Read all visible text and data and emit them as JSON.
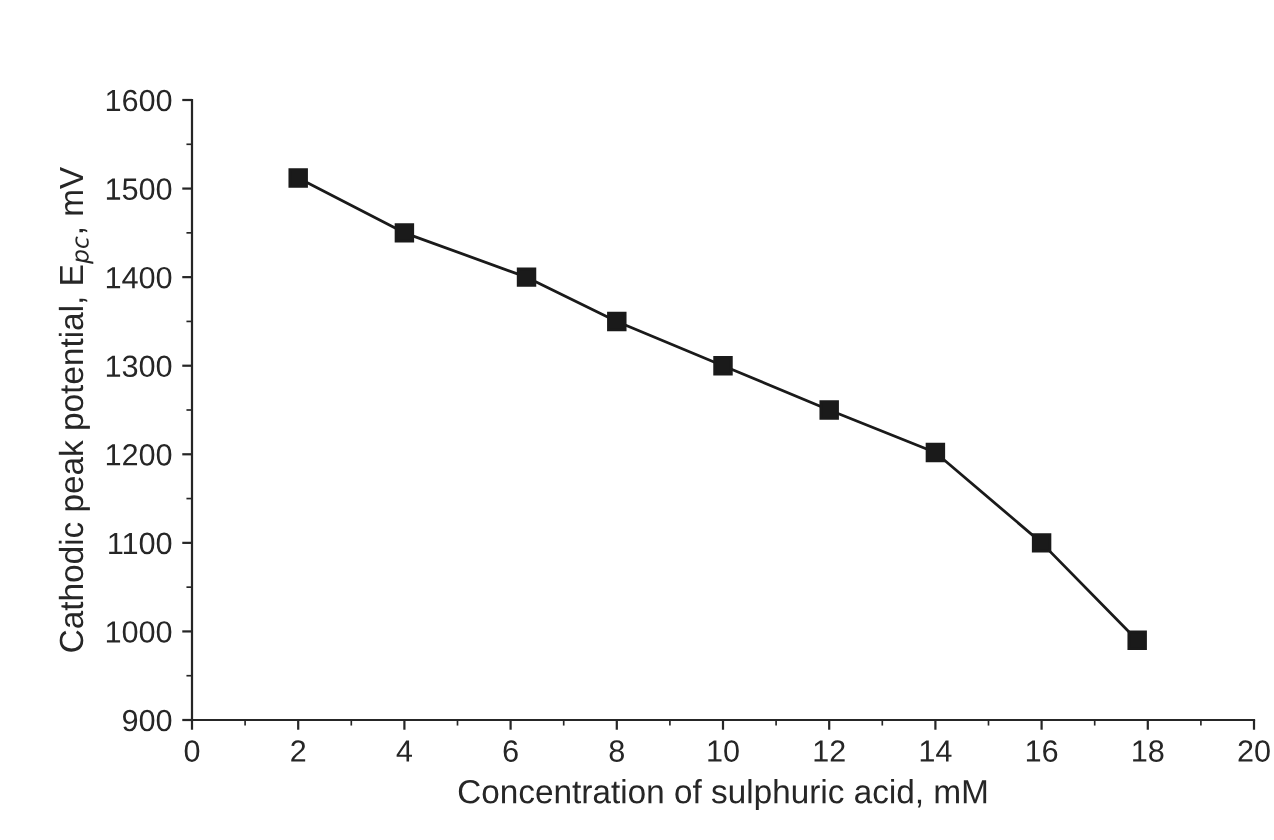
{
  "chart_data": {
    "type": "line",
    "xlabel": "Concentration of sulphuric acid, mM",
    "ylabel": "Cathodic peak potential, E$_{pc}$, mV",
    "x": [
      2,
      4,
      6.3,
      8,
      10,
      12,
      14,
      16,
      17.8
    ],
    "series": [
      {
        "color": "#1a1a1a",
        "values": [
          1512,
          1450,
          1400,
          1350,
          1300,
          1250,
          1202,
          1100,
          990
        ]
      }
    ],
    "xlim": [
      0,
      20
    ],
    "xticks": [
      0,
      2,
      4,
      6,
      8,
      10,
      12,
      14,
      16,
      18,
      20
    ],
    "ylim": [
      900,
      1600
    ],
    "yticks": [
      900,
      1000,
      1100,
      1200,
      1300,
      1400,
      1500,
      1600
    ],
    "marker": "square",
    "line_style": "solid",
    "grid": false,
    "legend": false
  }
}
